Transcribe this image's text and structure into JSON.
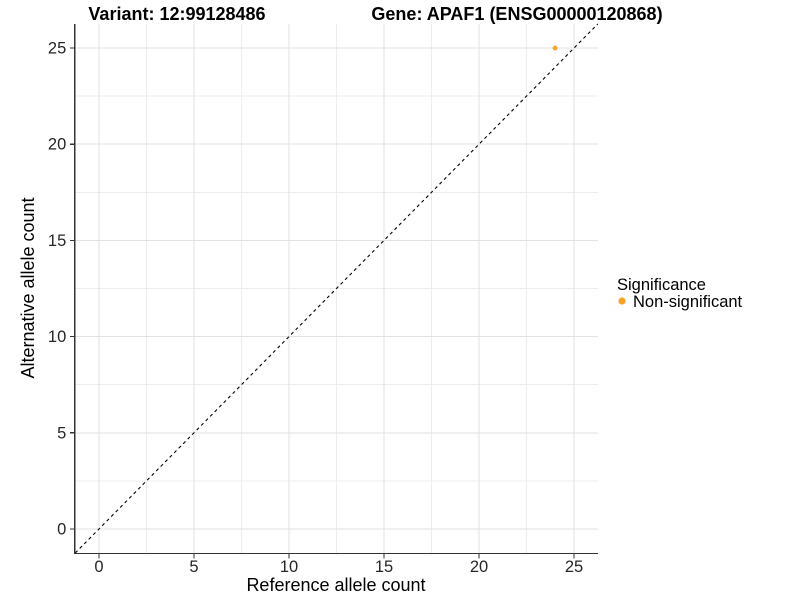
{
  "chart_data": {
    "type": "scatter",
    "title_left": "Variant: 12:99128486",
    "title_right": "Gene: APAF1 (ENSG00000120868)",
    "xlabel": "Reference allele count",
    "ylabel": "Alternative allele count",
    "xlim": [
      -1.25,
      26.25
    ],
    "ylim": [
      -1.25,
      26.25
    ],
    "x_ticks": [
      0,
      5,
      10,
      15,
      20,
      25
    ],
    "y_ticks": [
      0,
      5,
      10,
      15,
      20,
      25
    ],
    "minor_ticks": [
      2.5,
      7.5,
      12.5,
      17.5,
      22.5
    ],
    "grid": true,
    "identity_line": {
      "style": "dashed",
      "color": "#000000",
      "from": -1.25,
      "to": 26.25
    },
    "series": [
      {
        "name": "Non-significant",
        "color": "#F8A326",
        "points": [
          {
            "x": 24,
            "y": 25
          }
        ]
      }
    ],
    "legend": {
      "title": "Significance",
      "position": "right",
      "items": [
        {
          "label": "Non-significant",
          "color": "#F8A326"
        }
      ]
    }
  }
}
